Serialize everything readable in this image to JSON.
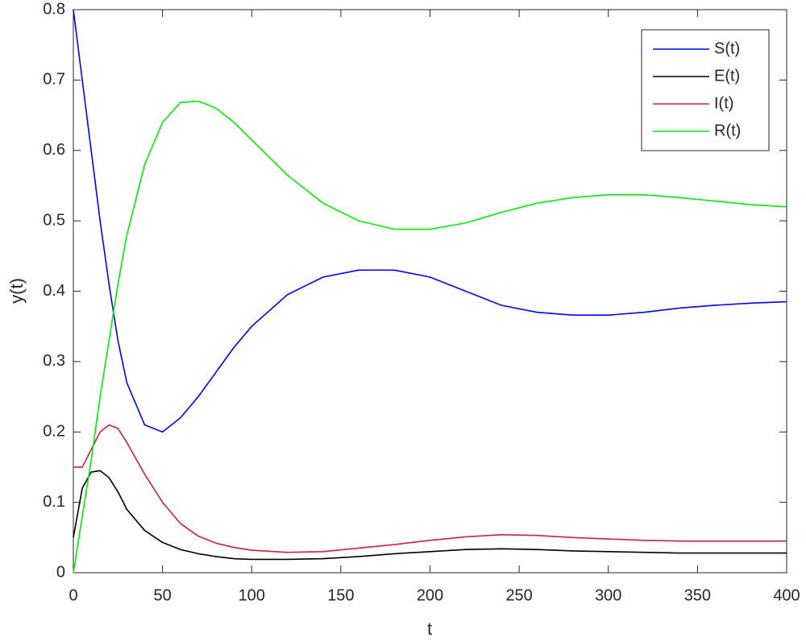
{
  "chart_data": {
    "type": "line",
    "xlabel": "t",
    "ylabel": "y(t)",
    "x": [
      0,
      5,
      10,
      15,
      20,
      25,
      30,
      40,
      50,
      60,
      70,
      80,
      90,
      100,
      120,
      140,
      160,
      180,
      200,
      220,
      240,
      260,
      280,
      300,
      320,
      340,
      360,
      380,
      400
    ],
    "series": [
      {
        "name": "S(t)",
        "color": "#0000ff",
        "values": [
          0.8,
          0.7,
          0.6,
          0.5,
          0.41,
          0.33,
          0.27,
          0.21,
          0.2,
          0.22,
          0.25,
          0.285,
          0.32,
          0.35,
          0.395,
          0.42,
          0.43,
          0.43,
          0.42,
          0.4,
          0.38,
          0.37,
          0.366,
          0.366,
          0.37,
          0.376,
          0.38,
          0.383,
          0.385
        ]
      },
      {
        "name": "E(t)",
        "color": "#000000",
        "values": [
          0.05,
          0.12,
          0.143,
          0.145,
          0.135,
          0.115,
          0.09,
          0.06,
          0.043,
          0.033,
          0.027,
          0.023,
          0.02,
          0.019,
          0.019,
          0.02,
          0.023,
          0.027,
          0.03,
          0.033,
          0.034,
          0.033,
          0.031,
          0.03,
          0.029,
          0.028,
          0.028,
          0.028,
          0.028
        ]
      },
      {
        "name": "I(t)",
        "color": "#d01f3c",
        "values": [
          0.15,
          0.15,
          0.175,
          0.2,
          0.21,
          0.205,
          0.185,
          0.14,
          0.1,
          0.07,
          0.052,
          0.042,
          0.036,
          0.032,
          0.029,
          0.03,
          0.035,
          0.04,
          0.046,
          0.051,
          0.054,
          0.053,
          0.05,
          0.048,
          0.046,
          0.045,
          0.045,
          0.045,
          0.045
        ]
      },
      {
        "name": "R(t)",
        "color": "#00ee00",
        "values": [
          0,
          0.08,
          0.16,
          0.25,
          0.33,
          0.41,
          0.48,
          0.58,
          0.64,
          0.668,
          0.67,
          0.66,
          0.64,
          0.615,
          0.565,
          0.525,
          0.5,
          0.488,
          0.488,
          0.497,
          0.512,
          0.525,
          0.533,
          0.537,
          0.537,
          0.533,
          0.528,
          0.523,
          0.52
        ]
      }
    ],
    "xlim": [
      0,
      400
    ],
    "xticks": [
      0,
      50,
      100,
      150,
      200,
      250,
      300,
      350,
      400
    ],
    "ylim": [
      0,
      0.8
    ],
    "yticks": [
      0,
      0.1,
      0.2,
      0.3,
      0.4,
      0.5,
      0.6,
      0.7,
      0.8
    ],
    "grid": false,
    "legend": "upper right"
  }
}
